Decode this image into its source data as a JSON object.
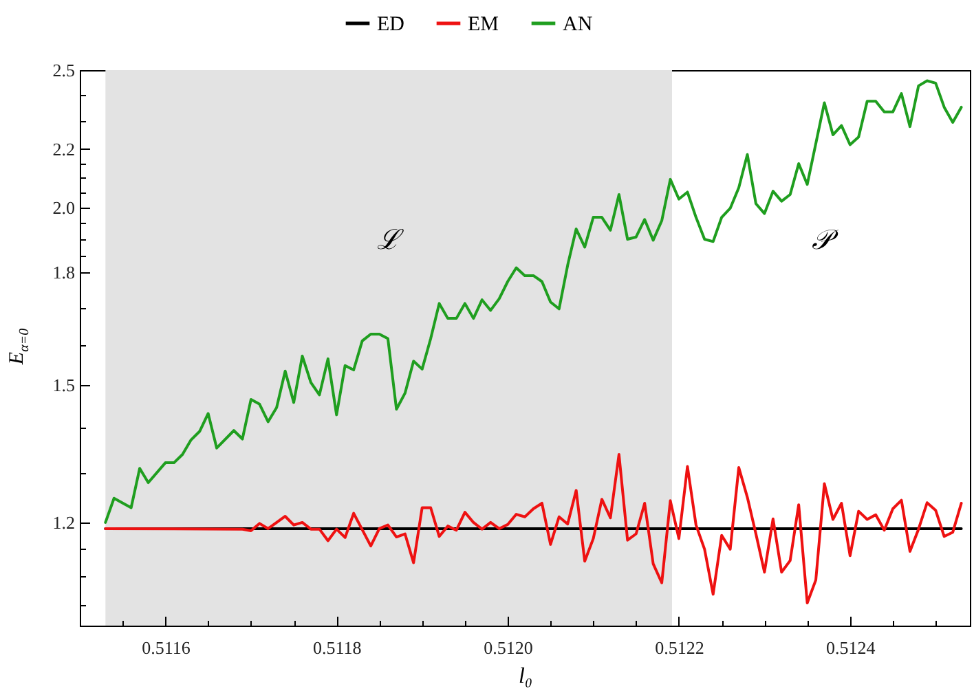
{
  "chart_data": {
    "type": "line",
    "xlabel": "l₀",
    "ylabel": "E$_{α=0}$",
    "log": true,
    "legend": "top",
    "xlim": [
      0.5115,
      0.51254
    ],
    "xticks": [
      {
        "value": 0.51155,
        "label": null
      },
      0.5116,
      {
        "value": 0.51165,
        "label": null
      },
      {
        "value": 0.5117,
        "label": null
      },
      {
        "value": 0.51175,
        "label": null
      },
      0.5118,
      {
        "value": 0.51185,
        "label": null
      },
      {
        "value": 0.5119,
        "label": null
      },
      {
        "value": 0.51195,
        "label": null
      },
      {
        "value": 0.512,
        "label": "0.5120"
      },
      {
        "value": 0.51205,
        "label": null
      },
      {
        "value": 0.5121,
        "label": null
      },
      {
        "value": 0.51215,
        "label": null
      },
      0.5122,
      {
        "value": 0.51225,
        "label": null
      },
      {
        "value": 0.5123,
        "label": null
      },
      {
        "value": 0.51235,
        "label": null
      },
      0.5124,
      {
        "value": 0.51245,
        "label": null
      },
      {
        "value": 0.5125,
        "label": null
      }
    ],
    "ylim": [
      1.015,
      2.5
    ],
    "yticks": [
      {
        "value": 1.05,
        "label": null
      },
      {
        "value": 1.1,
        "label": null
      },
      {
        "value": 1.15,
        "label": null
      },
      1.2,
      {
        "value": 1.3,
        "label": null
      },
      {
        "value": 1.4,
        "label": null
      },
      1.5,
      {
        "value": 1.6,
        "label": null
      },
      {
        "value": 1.7,
        "label": null
      },
      1.8,
      {
        "value": 1.85,
        "label": null
      },
      {
        "value": 1.9,
        "label": null
      },
      {
        "value": 1.95,
        "label": null
      },
      {
        "value": 2,
        "label": "2.0"
      },
      {
        "value": 2.05,
        "label": null
      },
      {
        "value": 2.1,
        "label": null
      },
      {
        "value": 2.15,
        "label": null
      },
      2.2,
      {
        "value": 2.3,
        "label": null
      },
      {
        "value": 2.4,
        "label": null
      },
      2.5
    ],
    "bands": [
      {
        "axis": "x",
        "from": 0.51153,
        "to": 0.512192,
        "color": "#e3e3e3",
        "label": "ℒ"
      }
    ],
    "annotations": [
      "𝒫"
    ],
    "series": [
      {
        "name": "ED",
        "color": "#000000",
        "x": [
          0.51153,
          0.51253
        ],
        "values": [
          1.188,
          1.188
        ]
      },
      {
        "name": "EM",
        "color": "#ee1111",
        "x": [
          0.51153,
          0.51169,
          0.5117,
          0.51171,
          0.51172,
          0.51174,
          0.51175,
          0.51176,
          0.51177,
          0.51178,
          0.51179,
          0.5118,
          0.51181,
          0.51182,
          0.51184,
          0.51185,
          0.51186,
          0.51187,
          0.51188,
          0.51189,
          0.5119,
          0.51191,
          0.51192,
          0.51193,
          0.51194,
          0.51195,
          0.51196,
          0.51197,
          0.51198,
          0.51199,
          0.512,
          0.51201,
          0.51202,
          0.51203,
          0.51204,
          0.51205,
          0.51206,
          0.51207,
          0.51208,
          0.51209,
          0.5121,
          0.51211,
          0.51212,
          0.51213,
          0.51214,
          0.51215,
          0.51216,
          0.51217,
          0.51218,
          0.51219,
          0.5122,
          0.51221,
          0.51222,
          0.51223,
          0.51224,
          0.51225,
          0.51226,
          0.51227,
          0.51228,
          0.51229,
          0.5123,
          0.51231,
          0.51232,
          0.51233,
          0.51234,
          0.51235,
          0.51236,
          0.51237,
          0.51238,
          0.51239,
          0.5124,
          0.51241,
          0.51242,
          0.51243,
          0.51244,
          0.51245,
          0.51246,
          0.51247,
          0.51248,
          0.51249,
          0.5125,
          0.51251,
          0.51252,
          0.51253
        ],
        "values": [
          1.188,
          1.187,
          1.184,
          1.198,
          1.188,
          1.212,
          1.195,
          1.2,
          1.187,
          1.187,
          1.165,
          1.187,
          1.171,
          1.218,
          1.155,
          1.188,
          1.195,
          1.172,
          1.178,
          1.124,
          1.229,
          1.229,
          1.173,
          1.193,
          1.185,
          1.22,
          1.2,
          1.187,
          1.2,
          1.188,
          1.196,
          1.216,
          1.211,
          1.227,
          1.238,
          1.158,
          1.211,
          1.197,
          1.264,
          1.127,
          1.169,
          1.246,
          1.209,
          1.34,
          1.166,
          1.178,
          1.238,
          1.122,
          1.088,
          1.243,
          1.169,
          1.314,
          1.195,
          1.149,
          1.068,
          1.175,
          1.149,
          1.312,
          1.25,
          1.178,
          1.107,
          1.207,
          1.107,
          1.128,
          1.235,
          1.053,
          1.093,
          1.278,
          1.206,
          1.238,
          1.137,
          1.222,
          1.206,
          1.215,
          1.185,
          1.227,
          1.244,
          1.145,
          1.187,
          1.239,
          1.224,
          1.173,
          1.181,
          1.238
        ]
      },
      {
        "name": "AN",
        "color": "#1f9e1f",
        "x": [
          0.51153,
          0.51154,
          0.51156,
          0.51157,
          0.51158,
          0.5116,
          0.51161,
          0.51162,
          0.51163,
          0.51164,
          0.51165,
          0.51166,
          0.51168,
          0.51169,
          0.5117,
          0.51171,
          0.51172,
          0.51173,
          0.51174,
          0.51175,
          0.51176,
          0.51177,
          0.51178,
          0.51179,
          0.5118,
          0.51181,
          0.51182,
          0.51183,
          0.51184,
          0.51185,
          0.51186,
          0.51187,
          0.51188,
          0.51189,
          0.5119,
          0.51191,
          0.51192,
          0.51193,
          0.51194,
          0.51195,
          0.51196,
          0.51197,
          0.51198,
          0.51199,
          0.512,
          0.51201,
          0.51202,
          0.51203,
          0.51204,
          0.51205,
          0.51206,
          0.51207,
          0.51208,
          0.51209,
          0.5121,
          0.51211,
          0.51212,
          0.51213,
          0.51214,
          0.51215,
          0.51216,
          0.51217,
          0.51218,
          0.51219,
          0.5122,
          0.51221,
          0.51222,
          0.51223,
          0.51224,
          0.51225,
          0.51226,
          0.51227,
          0.51228,
          0.51229,
          0.5123,
          0.51231,
          0.51232,
          0.51233,
          0.51234,
          0.51235,
          0.51237,
          0.51238,
          0.51239,
          0.5124,
          0.51241,
          0.51242,
          0.51243,
          0.51244,
          0.51245,
          0.51246,
          0.51247,
          0.51248,
          0.51249,
          0.5125,
          0.51251,
          0.51252,
          0.51253
        ],
        "values": [
          1.2,
          1.248,
          1.229,
          1.31,
          1.28,
          1.322,
          1.322,
          1.34,
          1.372,
          1.391,
          1.432,
          1.354,
          1.393,
          1.374,
          1.465,
          1.454,
          1.413,
          1.446,
          1.534,
          1.458,
          1.572,
          1.506,
          1.476,
          1.565,
          1.429,
          1.548,
          1.537,
          1.611,
          1.629,
          1.629,
          1.617,
          1.442,
          1.48,
          1.559,
          1.539,
          1.617,
          1.712,
          1.671,
          1.671,
          1.712,
          1.671,
          1.722,
          1.693,
          1.725,
          1.774,
          1.814,
          1.791,
          1.791,
          1.774,
          1.716,
          1.697,
          1.821,
          1.932,
          1.876,
          1.969,
          1.969,
          1.928,
          2.043,
          1.9,
          1.907,
          1.962,
          1.897,
          1.958,
          2.094,
          2.028,
          2.051,
          1.969,
          1.9,
          1.893,
          1.969,
          1.998,
          2.066,
          2.18,
          2.013,
          1.981,
          2.054,
          2.021,
          2.043,
          2.148,
          2.077,
          2.371,
          2.251,
          2.285,
          2.215,
          2.243,
          2.377,
          2.377,
          2.336,
          2.336,
          2.407,
          2.281,
          2.437,
          2.457,
          2.448,
          2.354,
          2.297,
          2.354
        ]
      }
    ]
  }
}
